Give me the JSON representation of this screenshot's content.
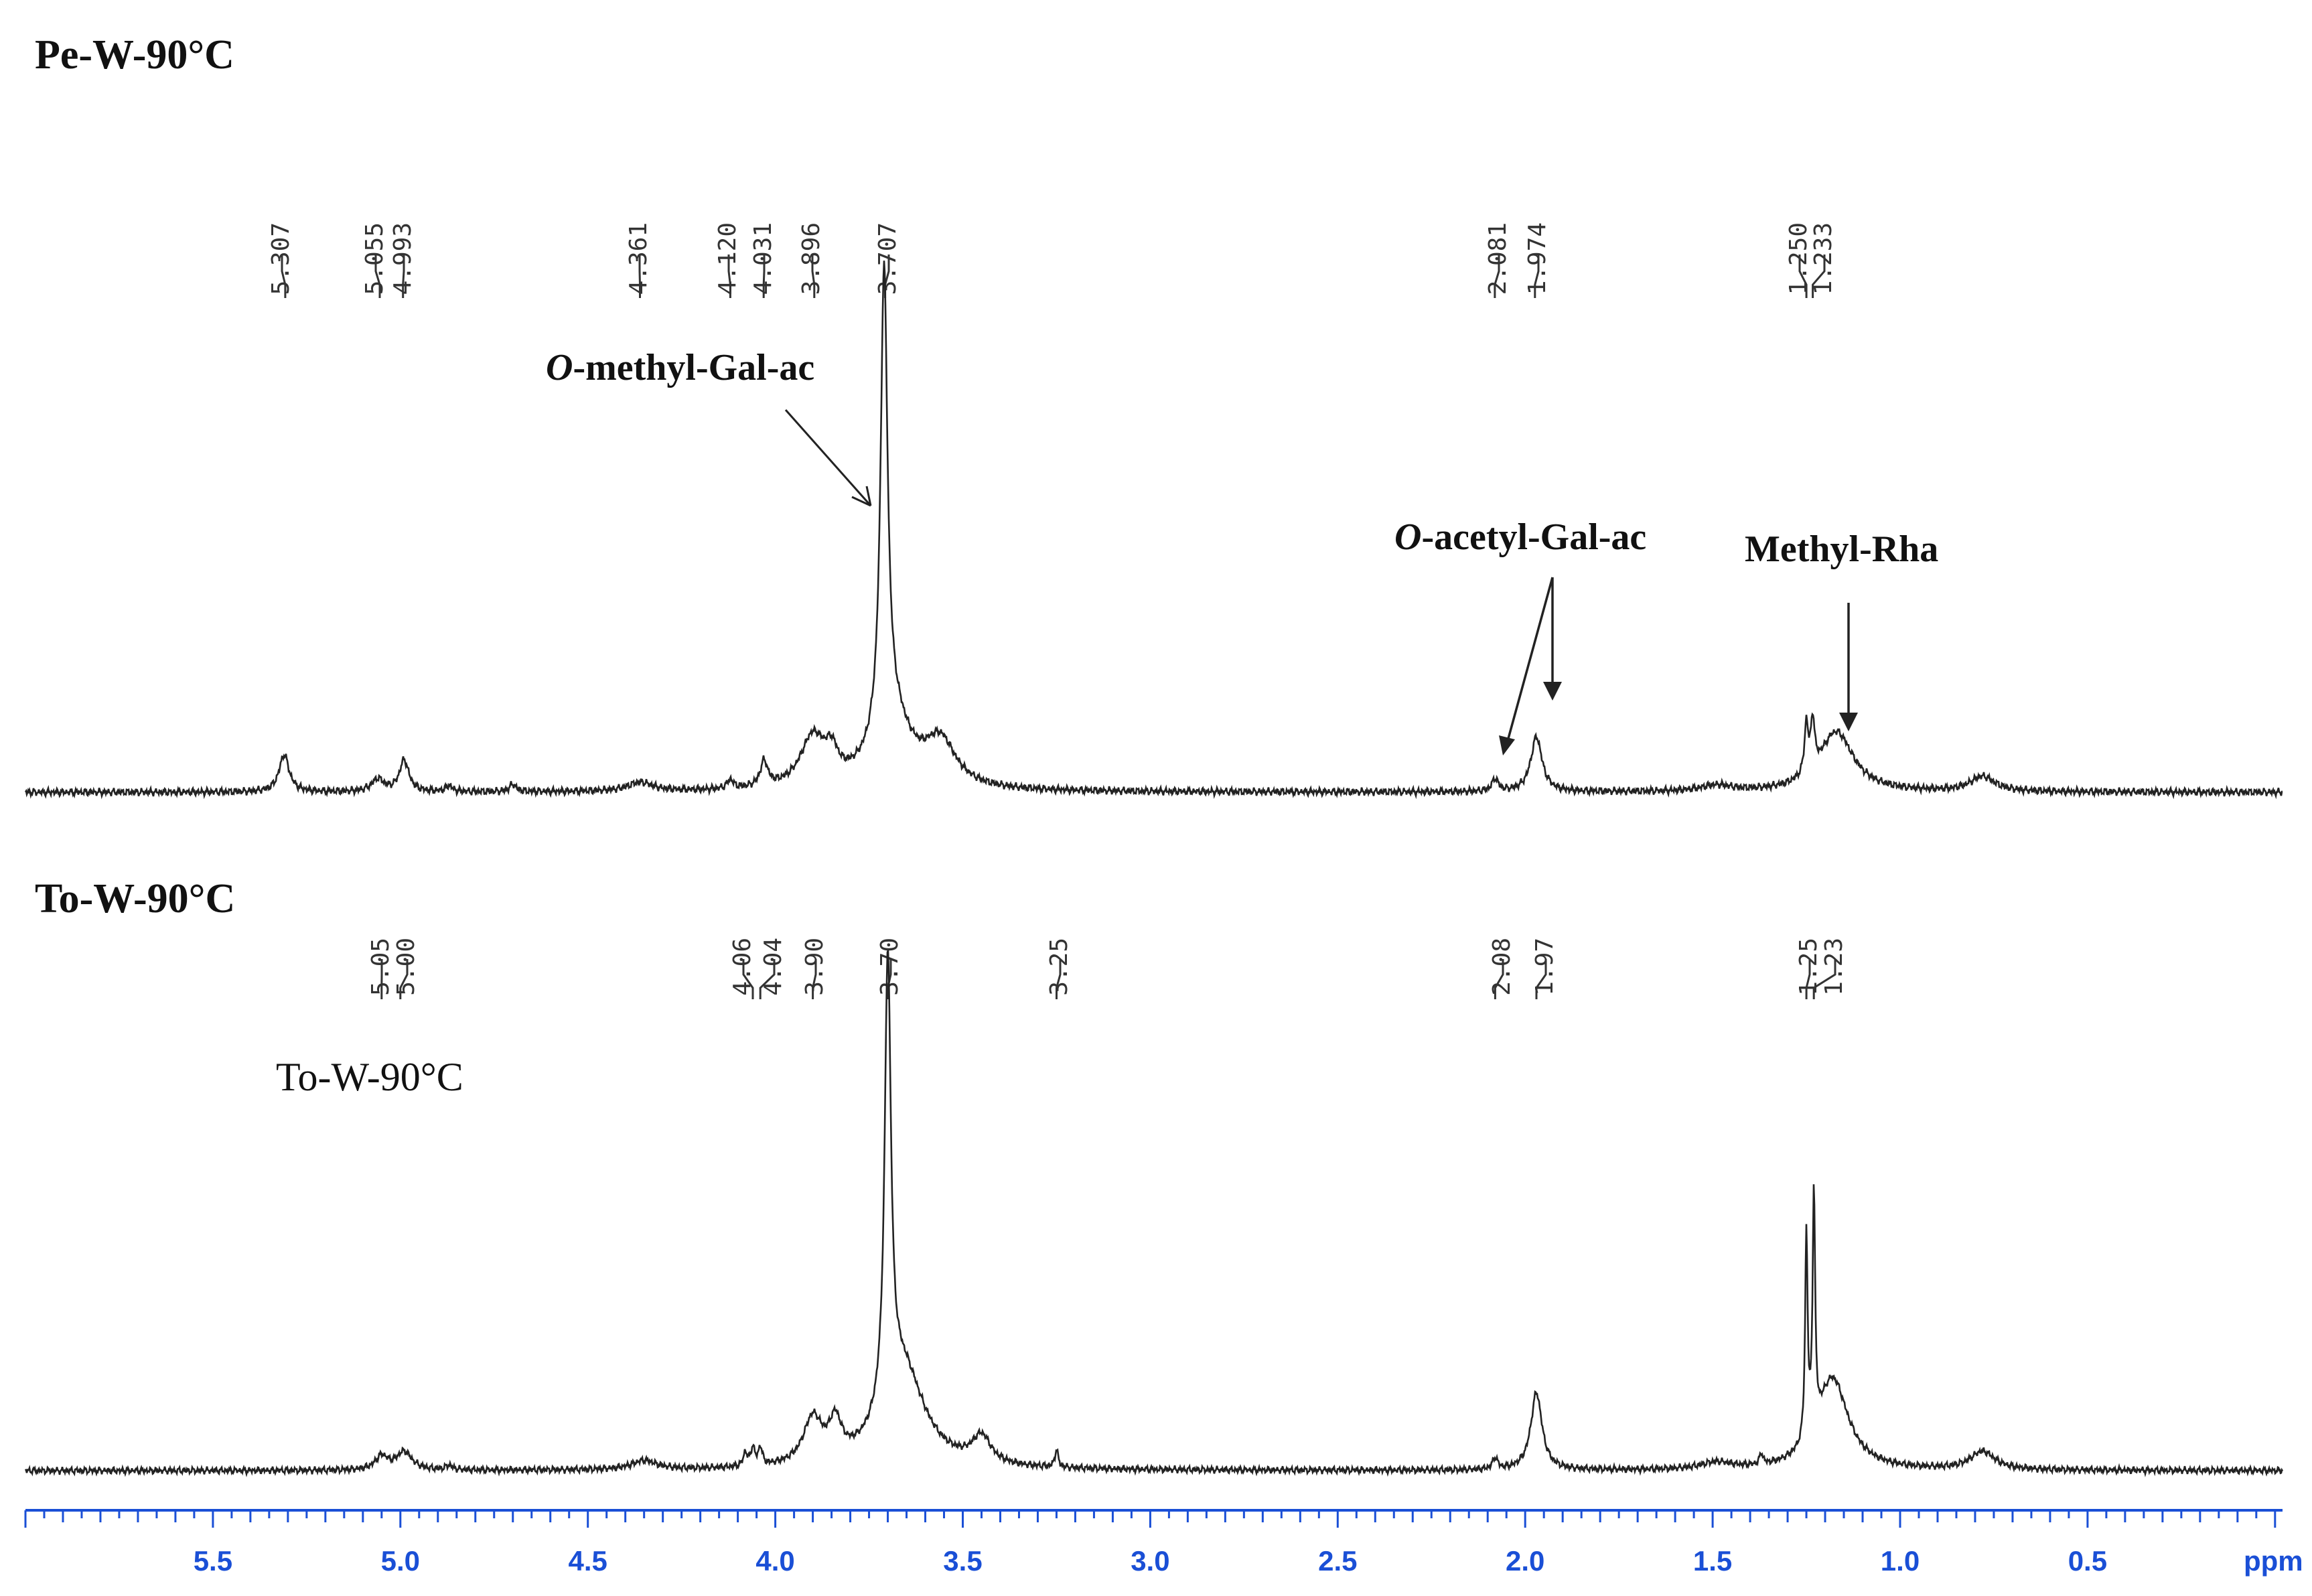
{
  "chart_data": {
    "type": "line",
    "title": "",
    "xlabel": "ppm",
    "ylabel": "",
    "xlim": [
      6.0,
      -0.02
    ],
    "x_ticks": [
      "5.5",
      "5.0",
      "4.5",
      "4.0",
      "3.5",
      "3.0",
      "2.5",
      "2.0",
      "1.5",
      "1.0",
      "0.5"
    ],
    "x_tick_values": [
      5.5,
      5.0,
      4.5,
      4.0,
      3.5,
      3.0,
      2.5,
      2.0,
      1.5,
      1.0,
      0.5
    ],
    "axis_color": "#1a4fd6",
    "line_color": "#222222",
    "panels": [
      {
        "name": "Pe-W-90°C",
        "title": "Pe-W-90°C",
        "label_values": [
          "5.307",
          "5.055",
          "4.993",
          "4.361",
          "4.120",
          "4.031",
          "3.896",
          "3.707",
          "2.081",
          "1.974",
          "1.250",
          "1.233"
        ],
        "peaks": [
          {
            "ppm": 5.31,
            "h": 0.075,
            "w": 0.016
          },
          {
            "ppm": 5.06,
            "h": 0.025,
            "w": 0.02
          },
          {
            "ppm": 4.99,
            "h": 0.063,
            "w": 0.015
          },
          {
            "ppm": 4.87,
            "h": 0.012,
            "w": 0.01
          },
          {
            "ppm": 4.7,
            "h": 0.015,
            "w": 0.01
          },
          {
            "ppm": 4.36,
            "h": 0.018,
            "w": 0.04
          },
          {
            "ppm": 4.12,
            "h": 0.018,
            "w": 0.01
          },
          {
            "ppm": 4.03,
            "h": 0.05,
            "w": 0.012
          },
          {
            "ppm": 3.9,
            "h": 0.1,
            "w": 0.04
          },
          {
            "ppm": 3.85,
            "h": 0.05,
            "w": 0.02
          },
          {
            "ppm": 3.71,
            "h": 0.92,
            "w": 0.011
          },
          {
            "ppm": 3.69,
            "h": 0.14,
            "w": 0.06
          },
          {
            "ppm": 3.56,
            "h": 0.09,
            "w": 0.05
          },
          {
            "ppm": 2.08,
            "h": 0.025,
            "w": 0.01
          },
          {
            "ppm": 1.97,
            "h": 0.11,
            "w": 0.018
          },
          {
            "ppm": 1.49,
            "h": 0.012,
            "w": 0.05
          },
          {
            "ppm": 1.25,
            "h": 0.1,
            "w": 0.006
          },
          {
            "ppm": 1.233,
            "h": 0.1,
            "w": 0.006
          },
          {
            "ppm": 1.17,
            "h": 0.12,
            "w": 0.055
          },
          {
            "ppm": 0.78,
            "h": 0.03,
            "w": 0.04
          }
        ]
      },
      {
        "name": "To-W-90°C",
        "title": "To-W-90°C",
        "label_values": [
          "5.05",
          "5.00",
          "4.06",
          "4.04",
          "3.90",
          "3.70",
          "3.25",
          "2.08",
          "1.97",
          "1.25",
          "1.23"
        ],
        "peaks": [
          {
            "ppm": 5.05,
            "h": 0.03,
            "w": 0.02
          },
          {
            "ppm": 4.99,
            "h": 0.04,
            "w": 0.025
          },
          {
            "ppm": 4.87,
            "h": 0.01,
            "w": 0.01
          },
          {
            "ppm": 4.35,
            "h": 0.02,
            "w": 0.04
          },
          {
            "ppm": 4.08,
            "h": 0.03,
            "w": 0.006
          },
          {
            "ppm": 4.06,
            "h": 0.04,
            "w": 0.006
          },
          {
            "ppm": 4.04,
            "h": 0.04,
            "w": 0.006
          },
          {
            "ppm": 3.9,
            "h": 0.1,
            "w": 0.03
          },
          {
            "ppm": 3.84,
            "h": 0.08,
            "w": 0.02
          },
          {
            "ppm": 3.7,
            "h": 0.98,
            "w": 0.01
          },
          {
            "ppm": 3.66,
            "h": 0.22,
            "w": 0.07
          },
          {
            "ppm": 3.45,
            "h": 0.06,
            "w": 0.03
          },
          {
            "ppm": 3.25,
            "h": 0.04,
            "w": 0.005
          },
          {
            "ppm": 2.08,
            "h": 0.025,
            "w": 0.008
          },
          {
            "ppm": 1.97,
            "h": 0.17,
            "w": 0.018
          },
          {
            "ppm": 1.49,
            "h": 0.015,
            "w": 0.05
          },
          {
            "ppm": 1.37,
            "h": 0.025,
            "w": 0.005
          },
          {
            "ppm": 1.25,
            "h": 0.45,
            "w": 0.004
          },
          {
            "ppm": 1.23,
            "h": 0.52,
            "w": 0.004
          },
          {
            "ppm": 1.18,
            "h": 0.2,
            "w": 0.05
          },
          {
            "ppm": 0.78,
            "h": 0.04,
            "w": 0.04
          }
        ]
      }
    ],
    "annotations": [
      {
        "italic": "O",
        "text": "-methyl-Gal-ac"
      },
      {
        "italic": "O",
        "text": "-acetyl-Gal-ac"
      },
      {
        "italic": "",
        "text": "Methyl-Rha"
      },
      {
        "italic": "",
        "text": "To-W-90°C"
      }
    ]
  }
}
